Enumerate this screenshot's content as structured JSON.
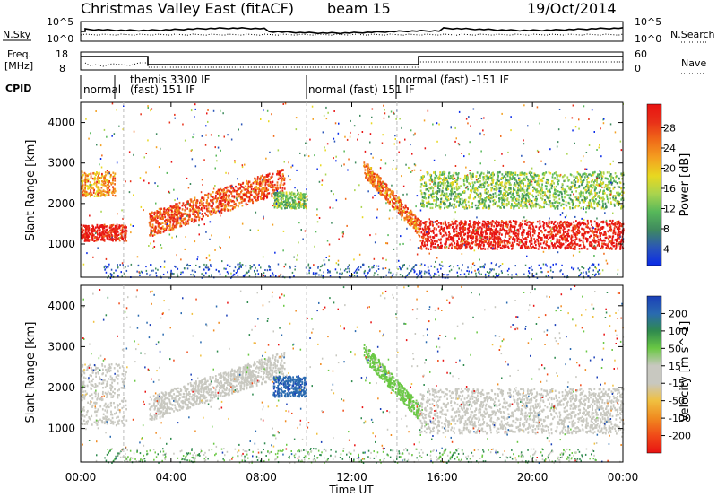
{
  "header": {
    "title": "Christmas Valley East (fitACF)",
    "beam": "beam 15",
    "date": "19/Oct/2014"
  },
  "noise_panel": {
    "left_label": "N.Sky",
    "right_label": "N.Search",
    "left_ticks": [
      "10^5",
      "10^0"
    ],
    "right_ticks": [
      "10^5",
      "10^0"
    ]
  },
  "freq_panel": {
    "left_label_1": "Freq.",
    "left_label_2": "[MHz]",
    "right_label": "Nave",
    "left_ticks": [
      "18",
      "8"
    ],
    "right_ticks": [
      "60",
      "0"
    ]
  },
  "cpid": {
    "label": "CPID",
    "segments": [
      {
        "start_hour": 0.0,
        "end_hour": 1.9,
        "text": "normal"
      },
      {
        "start_hour": 1.9,
        "end_hour": 10.0,
        "text": "themis 3300 IF",
        "text2": "(fast) 151 IF"
      },
      {
        "start_hour": 10.0,
        "end_hour": 14.0,
        "text": "normal (fast) 151 IF"
      },
      {
        "start_hour": 14.0,
        "end_hour": 24.0,
        "text": "normal (fast) -151 IF"
      }
    ]
  },
  "power_panel": {
    "ylabel": "Slant Range [km]",
    "cbar_label": "Power [dB]",
    "cbar_ticks": [
      "4",
      "8",
      "12",
      "16",
      "20",
      "24",
      "28"
    ],
    "cbar_colors": [
      "#0a2be8",
      "#2a55b8",
      "#3f8a5e",
      "#57b85a",
      "#a9d44e",
      "#e8d820",
      "#f4a020",
      "#f06a18",
      "#e83018",
      "#e81212"
    ]
  },
  "velocity_panel": {
    "ylabel": "Slant Range [km]",
    "cbar_label": "Velocity [m s^-1]",
    "cbar_ticks": [
      "200",
      "100",
      "50",
      "15",
      "-15",
      "-50",
      "-100",
      "-200"
    ],
    "cbar_colors": [
      "#1a3fb8",
      "#2a6ab0",
      "#2f8a4e",
      "#6ac844",
      "#c8c8c0",
      "#c8c8c0",
      "#f0c040",
      "#f08a20",
      "#f04a18",
      "#e81212"
    ]
  },
  "xaxis": {
    "label": "Time UT",
    "ticks": [
      "00:00",
      "04:00",
      "08:00",
      "12:00",
      "16:00",
      "20:00",
      "00:00"
    ]
  },
  "chart_data": {
    "type": "heatmap",
    "title": "Christmas Valley East (fitACF)",
    "subtitle": "beam 15  19/Oct/2014",
    "xlabel": "Time UT",
    "xlim_hours": [
      0,
      24
    ],
    "panels": [
      {
        "name": "Power",
        "ylabel": "Slant Range [km]",
        "ylim_km": [
          180,
          4500
        ],
        "yticks": [
          1000,
          2000,
          3000,
          4000
        ],
        "color_label": "Power [dB]",
        "color_range": [
          0,
          30
        ],
        "backscatter_bands": [
          {
            "t_start": 0.0,
            "t_end": 2.0,
            "range_low": 1100,
            "range_high": 1500,
            "value_db": 28
          },
          {
            "t_start": 0.0,
            "t_end": 1.5,
            "range_low": 2200,
            "range_high": 2800,
            "value_db": 20
          },
          {
            "t_start": 3.0,
            "t_end": 9.0,
            "range_low": 1200,
            "range_high": 2800,
            "value_db": 24
          },
          {
            "t_start": 8.5,
            "t_end": 10.0,
            "range_low": 1900,
            "range_high": 2300,
            "value_db": 12
          },
          {
            "t_start": 12.5,
            "t_end": 15.0,
            "range_low": 1200,
            "range_high": 2700,
            "value_db": 22
          },
          {
            "t_start": 15.0,
            "t_end": 24.0,
            "range_low": 900,
            "range_high": 1600,
            "value_db": 28
          },
          {
            "t_start": 15.0,
            "t_end": 24.0,
            "range_low": 1900,
            "range_high": 2800,
            "value_db": 12
          }
        ]
      },
      {
        "name": "Velocity",
        "ylabel": "Slant Range [km]",
        "ylim_km": [
          180,
          4500
        ],
        "yticks": [
          1000,
          2000,
          3000,
          4000
        ],
        "color_label": "Velocity [m s^-1]",
        "color_range": [
          -200,
          200
        ],
        "backscatter_bands": [
          {
            "t_start": 0.0,
            "t_end": 2.0,
            "range_low": 1100,
            "range_high": 2600,
            "value_ms": 0
          },
          {
            "t_start": 3.0,
            "t_end": 9.0,
            "range_low": 1200,
            "range_high": 2800,
            "value_ms": -20
          },
          {
            "t_start": 8.5,
            "t_end": 10.0,
            "range_low": 1800,
            "range_high": 2300,
            "value_ms": 150
          },
          {
            "t_start": 12.5,
            "t_end": 15.0,
            "range_low": 1300,
            "range_high": 2700,
            "value_ms": 50
          },
          {
            "t_start": 15.0,
            "t_end": 24.0,
            "range_low": 900,
            "range_high": 2000,
            "value_ms": 0
          }
        ]
      }
    ],
    "grid": false
  }
}
